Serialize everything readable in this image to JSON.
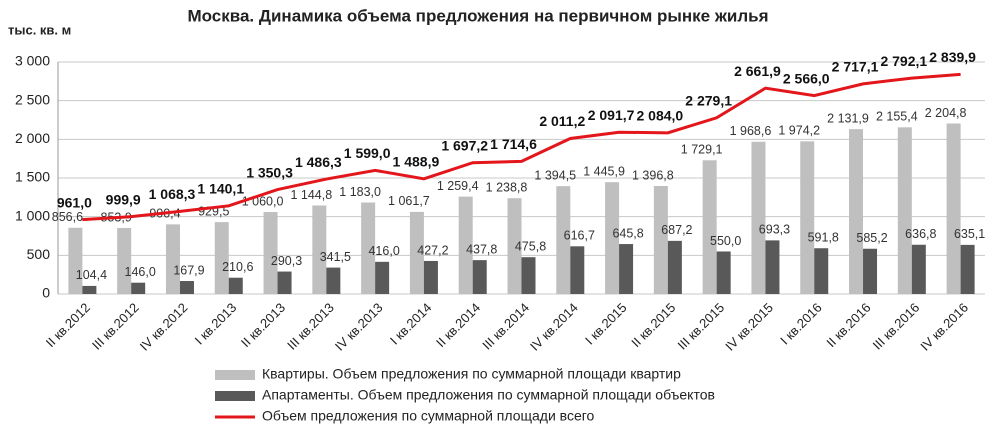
{
  "chart_data": {
    "type": "bar",
    "title": "Москва. Динамика объема предложения на первичном рынке жилья",
    "ylabel": "тыс. кв. м",
    "categories": [
      "II кв.2012",
      "III кв.2012",
      "IV кв.2012",
      "I кв.2013",
      "II кв.2013",
      "III кв.2013",
      "IV кв.2013",
      "I кв.2014",
      "II кв.2014",
      "III кв.2014",
      "IV кв.2014",
      "I кв.2015",
      "II кв.2015",
      "III кв.2015",
      "IV кв.2015",
      "I кв.2016",
      "II кв.2016",
      "III кв.2016",
      "IV кв.2016"
    ],
    "ylim": [
      0,
      3000
    ],
    "yticks": [
      0,
      500,
      {
        "value": 1000,
        "label": "1 000"
      },
      {
        "value": 1500,
        "label": "1 500"
      },
      {
        "value": 2000,
        "label": "2 000"
      },
      {
        "value": 2500,
        "label": "2 500"
      },
      {
        "value": 3000,
        "label": "3 000"
      }
    ],
    "grid": true,
    "series": [
      {
        "name": "Квартиры. Объем предложения по суммарной площади  квартир",
        "type": "bar",
        "color": "#bfbfbf",
        "values": [
          856.6,
          853.9,
          900.4,
          929.5,
          1060.0,
          1144.8,
          1183.0,
          1061.7,
          1259.4,
          1238.8,
          1394.5,
          1445.9,
          1396.8,
          1729.1,
          1968.6,
          1974.2,
          2131.9,
          2155.4,
          2204.8
        ],
        "value_labels": [
          "856,6",
          "853,9",
          "900,4",
          "929,5",
          "1 060,0",
          "1 144,8",
          "1 183,0",
          "1 061,7",
          "1 259,4",
          "1 238,8",
          "1 394,5",
          "1 445,9",
          "1 396,8",
          "1 729,1",
          "1 968,6",
          "1 974,2",
          "2 131,9",
          "2 155,4",
          "2 204,8"
        ]
      },
      {
        "name": "Апартаменты. Объем предложения по суммарной площади  объектов",
        "type": "bar",
        "color": "#595959",
        "values": [
          104.4,
          146.0,
          167.9,
          210.6,
          290.3,
          341.5,
          416.0,
          427.2,
          437.8,
          475.8,
          616.7,
          645.8,
          687.2,
          550.0,
          693.3,
          591.8,
          585.2,
          636.8,
          635.1
        ],
        "value_labels": [
          "104,4",
          "146,0",
          "167,9",
          "210,6",
          "290,3",
          "341,5",
          "416,0",
          "427,2",
          "437,8",
          "475,8",
          "616,7",
          "645,8",
          "687,2",
          "550,0",
          "693,3",
          "591,8",
          "585,2",
          "636,8",
          "635,1"
        ]
      },
      {
        "name": "Объем предложения по суммарной площади  всего",
        "type": "line",
        "color": "#e3161b",
        "values": [
          961.0,
          999.9,
          1068.3,
          1140.1,
          1350.3,
          1486.3,
          1599.0,
          1488.9,
          1697.2,
          1714.6,
          2011.2,
          2091.7,
          2084.0,
          2279.1,
          2661.9,
          2566.0,
          2717.1,
          2792.1,
          2839.9
        ],
        "value_labels": [
          "961,0",
          "999,9",
          "1 068,3",
          "1 140,1",
          "1 350,3",
          "1 486,3",
          "1 599,0",
          "1 488,9",
          "1 697,2",
          "1 714,6",
          "2 011,2",
          "2 091,7",
          "2 084,0",
          "2 279,1",
          "2 661,9",
          "2 566,0",
          "2 717,1",
          "2 792,1",
          "2 839,9"
        ]
      }
    ]
  }
}
